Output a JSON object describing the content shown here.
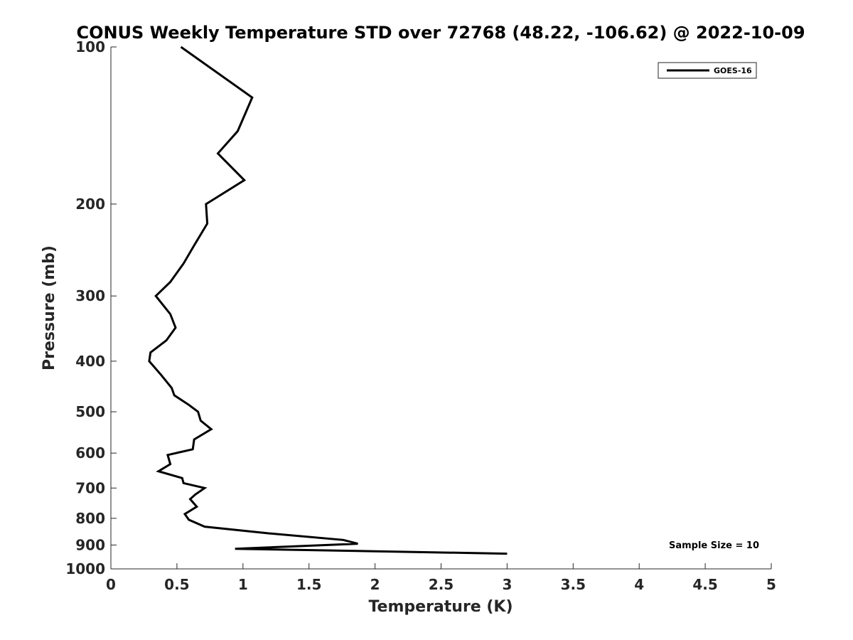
{
  "chart_data": {
    "type": "line",
    "title": "CONUS Weekly Temperature STD over 72768 (48.22, -106.62) @ 2022-10-09",
    "xlabel": "Temperature (K)",
    "ylabel": "Pressure (mb)",
    "xlim": [
      0,
      5
    ],
    "ylim": [
      100,
      1000
    ],
    "yscale": "log",
    "yreversed": true,
    "xticks": [
      "0",
      "0.5",
      "1",
      "1.5",
      "2",
      "2.5",
      "3",
      "3.5",
      "4",
      "4.5",
      "5"
    ],
    "yticks": [
      "100",
      "200",
      "300",
      "400",
      "500",
      "600",
      "700",
      "800",
      "900",
      "1000"
    ],
    "grid": false,
    "legend_position": "top-right",
    "annotation": "Sample Size = 10",
    "series": [
      {
        "name": "GOES-16",
        "color": "#000000",
        "points": [
          [
            0.53,
            100
          ],
          [
            1.07,
            125
          ],
          [
            0.96,
            145
          ],
          [
            0.81,
            160
          ],
          [
            1.01,
            180
          ],
          [
            0.72,
            200
          ],
          [
            0.73,
            218
          ],
          [
            0.63,
            240
          ],
          [
            0.55,
            260
          ],
          [
            0.45,
            282
          ],
          [
            0.34,
            300
          ],
          [
            0.45,
            325
          ],
          [
            0.49,
            345
          ],
          [
            0.42,
            365
          ],
          [
            0.3,
            385
          ],
          [
            0.29,
            400
          ],
          [
            0.38,
            425
          ],
          [
            0.46,
            450
          ],
          [
            0.48,
            465
          ],
          [
            0.59,
            485
          ],
          [
            0.66,
            500
          ],
          [
            0.68,
            520
          ],
          [
            0.76,
            540
          ],
          [
            0.63,
            565
          ],
          [
            0.62,
            590
          ],
          [
            0.43,
            605
          ],
          [
            0.45,
            630
          ],
          [
            0.36,
            650
          ],
          [
            0.54,
            670
          ],
          [
            0.55,
            685
          ],
          [
            0.71,
            700
          ],
          [
            0.64,
            720
          ],
          [
            0.6,
            735
          ],
          [
            0.65,
            760
          ],
          [
            0.56,
            785
          ],
          [
            0.59,
            805
          ],
          [
            0.71,
            830
          ],
          [
            1.2,
            855
          ],
          [
            1.76,
            880
          ],
          [
            1.87,
            895
          ],
          [
            0.94,
            915
          ],
          [
            3.0,
            935
          ]
        ]
      }
    ]
  }
}
